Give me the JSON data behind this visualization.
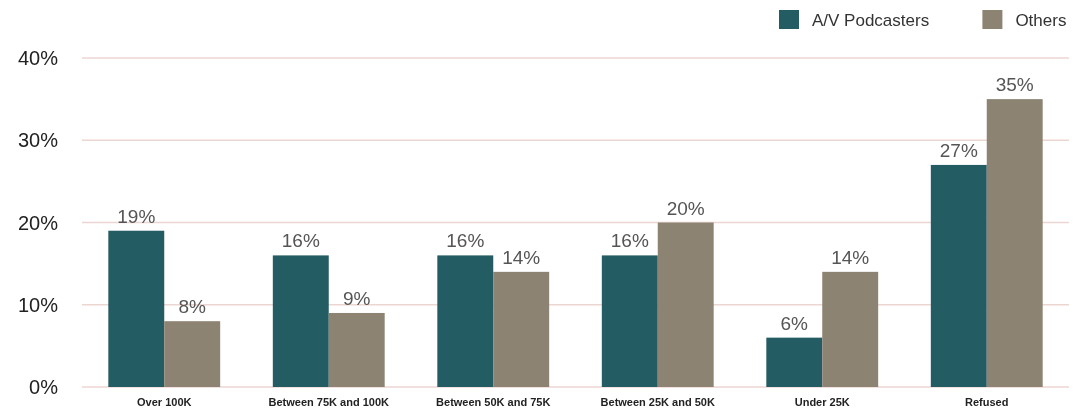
{
  "chart_data": {
    "type": "bar",
    "categories": [
      "Over 100K",
      "Between 75K and 100K",
      "Between 50K and 75K",
      "Between 25K and 50K",
      "Under 25K",
      "Refused"
    ],
    "series": [
      {
        "name": "A/V Podcasters",
        "color": "#245c64",
        "values": [
          19,
          16,
          16,
          16,
          6,
          27
        ],
        "value_labels": [
          "19%",
          "16%",
          "16%",
          "16%",
          "6%",
          "27%"
        ]
      },
      {
        "name": "Others",
        "color": "#8d8373",
        "values": [
          8,
          9,
          14,
          20,
          14,
          35
        ],
        "value_labels": [
          "8%",
          "9%",
          "14%",
          "20%",
          "14%",
          "35%"
        ]
      }
    ],
    "ylim": [
      0,
      40
    ],
    "yticks": [
      {
        "value": 0,
        "label": "0%"
      },
      {
        "value": 10,
        "label": "10%"
      },
      {
        "value": 20,
        "label": "20%"
      },
      {
        "value": 30,
        "label": "30%"
      },
      {
        "value": 40,
        "label": "40%"
      }
    ],
    "grid": "y",
    "legend": "top right"
  }
}
